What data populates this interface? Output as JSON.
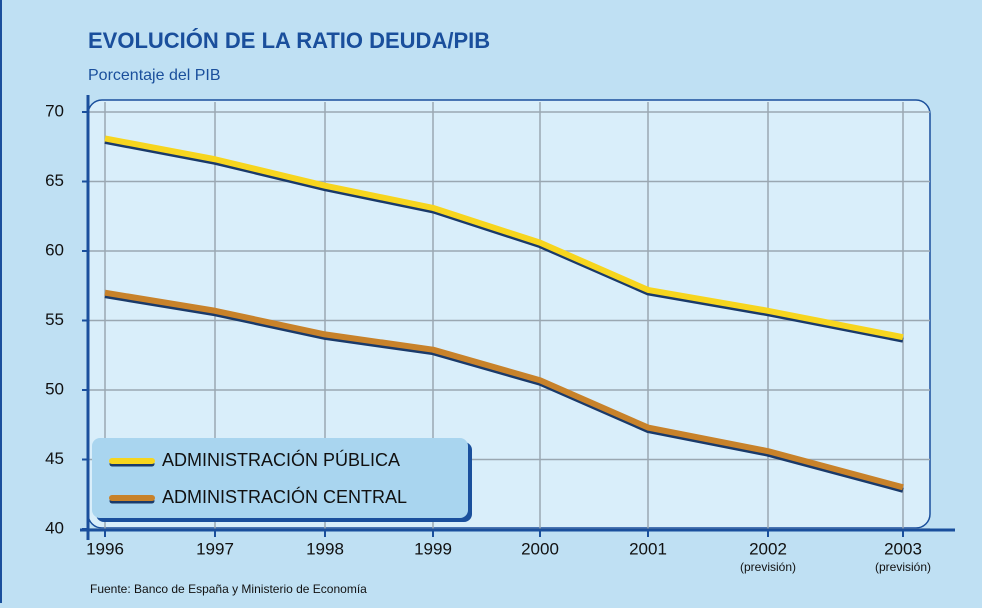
{
  "chart_data": {
    "type": "line",
    "title": "EVOLUCIÓN DE LA RATIO DEUDA/PIB",
    "subtitle": "Porcentaje del PIB",
    "source": "Fuente: Banco de España y Ministerio de Economía",
    "categories": [
      "1996",
      "1997",
      "1998",
      "1999",
      "2000",
      "2001",
      "2002",
      "2003"
    ],
    "category_notes": [
      null,
      null,
      null,
      null,
      null,
      null,
      "(previsión)",
      "(previsión)"
    ],
    "series": [
      {
        "name": "ADMINISTRACIÓN PÚBLICA",
        "color": "#f7d51e",
        "values": [
          68.1,
          66.6,
          64.7,
          63.1,
          60.6,
          57.2,
          55.7,
          53.8
        ]
      },
      {
        "name": "ADMINISTRACIÓN CENTRAL",
        "color": "#c8822a",
        "values": [
          57.0,
          55.7,
          54.0,
          52.9,
          50.7,
          47.3,
          45.6,
          43.0
        ]
      }
    ],
    "ylim": [
      40,
      70
    ],
    "yticks": [
      40,
      45,
      50,
      55,
      60,
      65,
      70
    ],
    "grid": true,
    "legend": "lower left"
  }
}
